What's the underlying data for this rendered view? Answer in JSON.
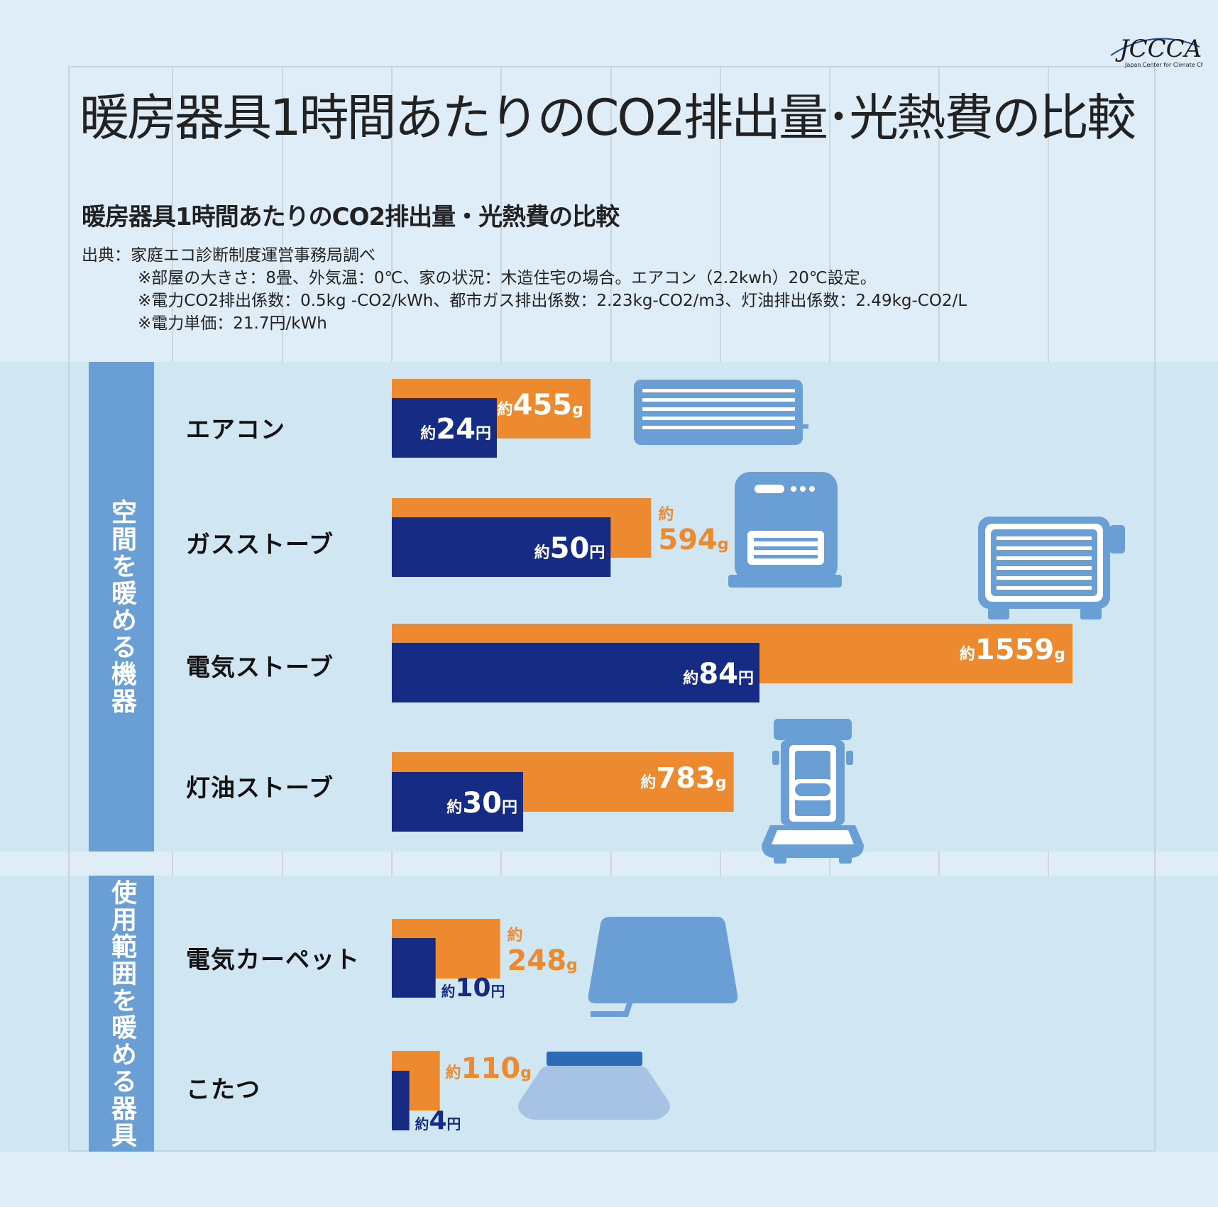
{
  "logo": {
    "text": "JCCCA",
    "subtext": "Japan Center for Climate Change Actions"
  },
  "title": "暖房器具1時間あたりのCO2排出量･光熱費の比較",
  "subtitle": "暖房器具1時間あたりのCO2排出量・光熱費の比較",
  "notes": [
    "出典：家庭エコ診断制度運営事務局調べ",
    "※部屋の大きさ：8畳、外気温：0℃、家の状況：木造住宅の場合。エアコン（2.2kwh）20℃設定。",
    "※電力CO2排出係数：0.5kg -CO2/kWh、都市ガス排出係数：2.23kg-CO2/m3、灯油排出係数：2.49kg-CO2/L",
    "※電力単価：21.7円/kWh"
  ],
  "groups": [
    {
      "label": "空間を暖める機器"
    },
    {
      "label": "使用範囲を暖める器具"
    }
  ],
  "colors": {
    "co2": "#ed8a2f",
    "cost": "#152b84",
    "group_label_bg": "#6a9fd6",
    "band": "#d0e6f3",
    "icon": "#6a9fd6"
  },
  "chart_data": {
    "type": "bar",
    "orientation": "horizontal",
    "categories": [
      "エアコン",
      "ガスストーブ",
      "電気ストーブ",
      "灯油ストーブ",
      "電気カーペット",
      "こたつ"
    ],
    "category_groups": [
      0,
      0,
      0,
      0,
      1,
      1
    ],
    "series": [
      {
        "name": "CO2排出量",
        "unit": "g",
        "values": [
          455,
          594,
          1559,
          783,
          248,
          110
        ],
        "labels": [
          "455",
          "594",
          "1559",
          "783",
          "248",
          "110"
        ]
      },
      {
        "name": "光熱費",
        "unit": "円",
        "values": [
          24,
          50,
          84,
          30,
          10,
          4
        ],
        "labels": [
          "24",
          "50",
          "84",
          "30",
          "10",
          "4"
        ]
      }
    ],
    "label_prefix": "約",
    "icons": [
      "air-conditioner-icon",
      "gas-stove-icon",
      "electric-stove-icon",
      "kerosene-stove-icon",
      "electric-carpet-icon",
      "kotatsu-icon"
    ],
    "grid": true
  }
}
